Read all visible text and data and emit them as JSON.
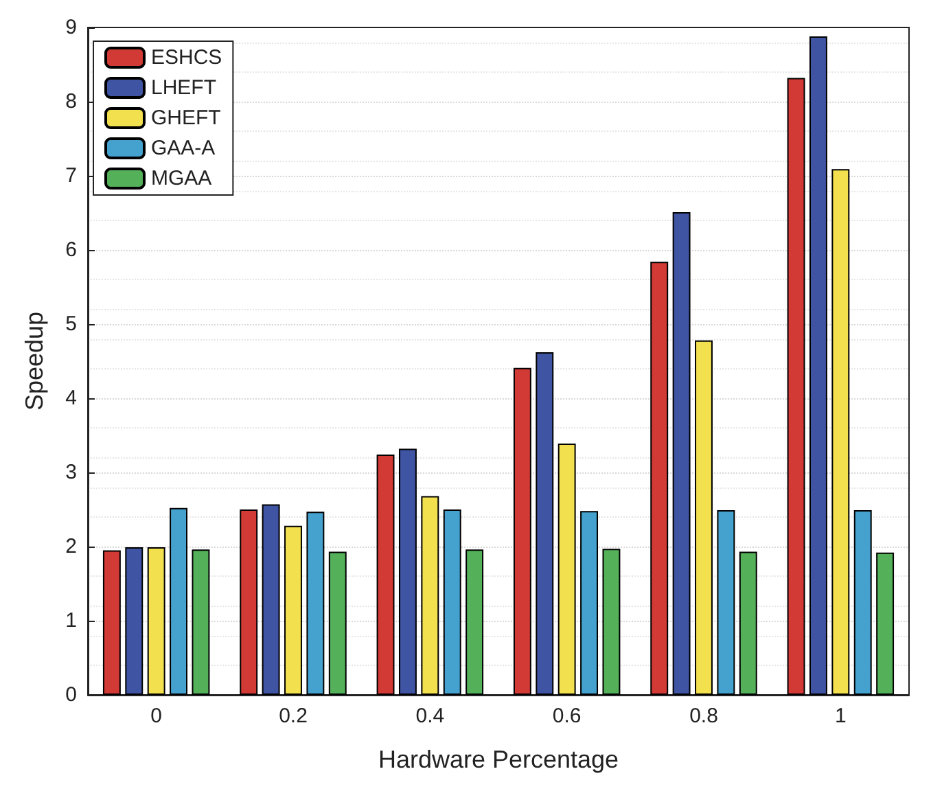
{
  "chart_data": {
    "type": "bar",
    "xlabel": "Hardware Percentage",
    "ylabel": "Speedup",
    "categories": [
      "0",
      "0.2",
      "0.4",
      "0.6",
      "0.8",
      "1"
    ],
    "series": [
      {
        "name": "ESHCS",
        "color": "#d23a35",
        "values": [
          1.95,
          2.5,
          3.24,
          4.41,
          5.84,
          8.32
        ]
      },
      {
        "name": "LHEFT",
        "color": "#3f54a3",
        "values": [
          1.99,
          2.57,
          3.32,
          4.62,
          6.51,
          8.88
        ]
      },
      {
        "name": "GHEFT",
        "color": "#f2e04f",
        "values": [
          1.99,
          2.28,
          2.68,
          3.39,
          4.78,
          7.09
        ]
      },
      {
        "name": "GAA-A",
        "color": "#45a2cf",
        "values": [
          2.52,
          2.47,
          2.5,
          2.48,
          2.49,
          2.49
        ]
      },
      {
        "name": "MGAA",
        "color": "#55b05a",
        "values": [
          1.96,
          1.93,
          1.96,
          1.97,
          1.93,
          1.92
        ]
      }
    ],
    "ylim": [
      0,
      9
    ],
    "yticks": [
      0,
      1,
      2,
      3,
      4,
      5,
      6,
      7,
      8,
      9
    ],
    "grid": true,
    "legend": "top left"
  }
}
